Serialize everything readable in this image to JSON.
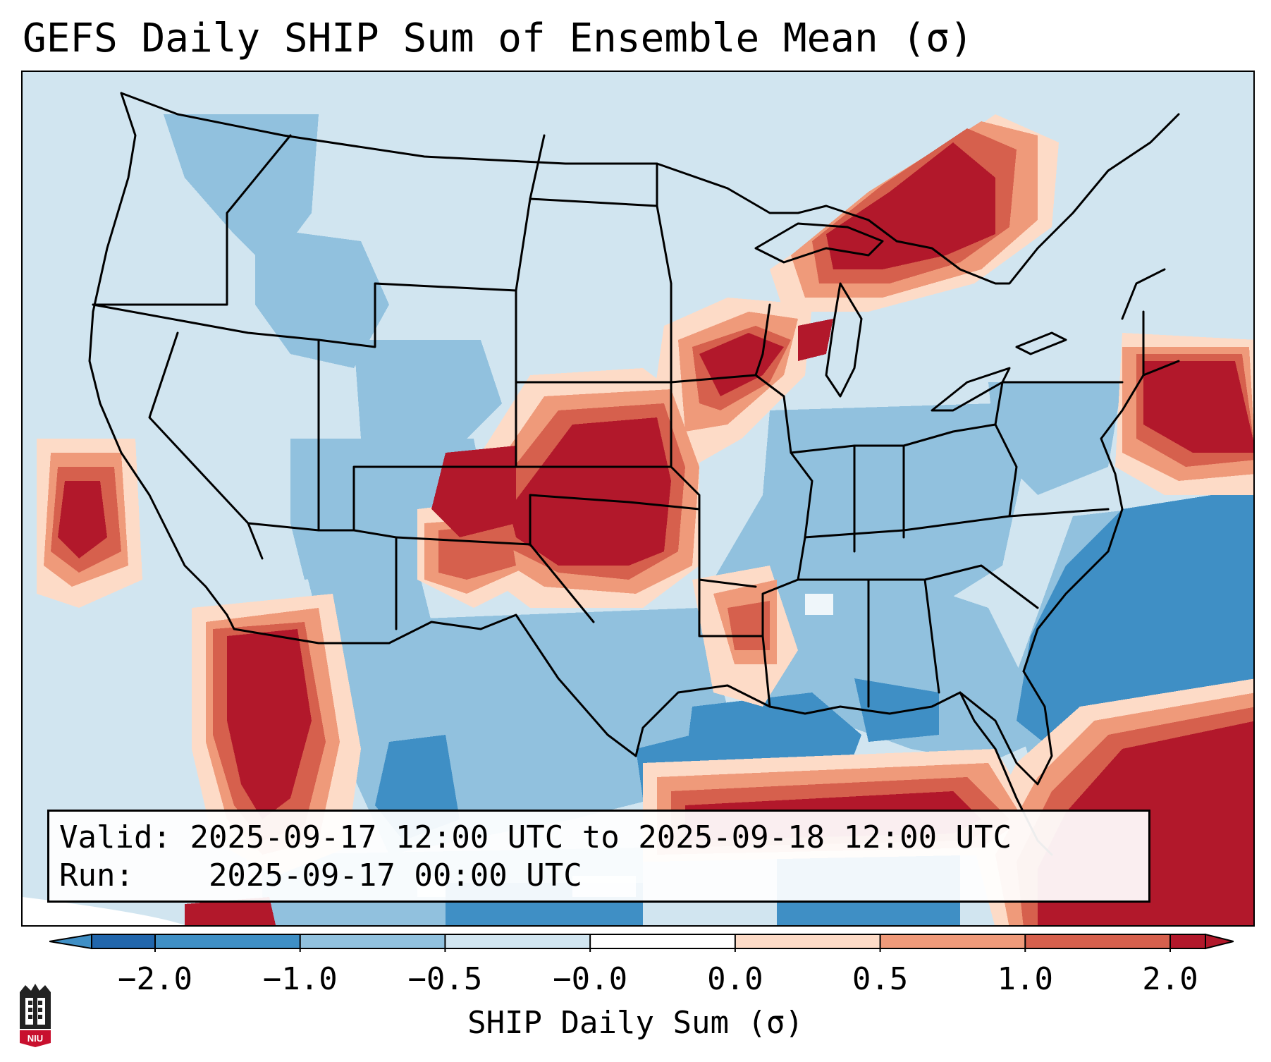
{
  "title": "GEFS Daily SHIP Sum of Ensemble Mean (σ)",
  "info": {
    "valid_label": "Valid:",
    "valid_value": "2025-09-17 12:00 UTC to 2025-09-18 12:00 UTC",
    "run_label": "Run:",
    "run_value": "2025-09-17 00:00 UTC"
  },
  "colorbar": {
    "label": "SHIP Daily Sum (σ)",
    "ticks": [
      "−2.0",
      "−1.0",
      "−0.5",
      "−0.0",
      "0.0",
      "0.5",
      "1.0",
      "2.0"
    ],
    "colors": [
      "#3f8fc5",
      "#91c1de",
      "#d1e5f0",
      "#ffffff",
      "#fddbc7",
      "#ef9a7a",
      "#d6604d",
      "#b2182b"
    ],
    "extend": "both"
  },
  "map": {
    "region": "Contiguous United States",
    "ocean_color": "#d1e5f0",
    "outside_domain_color": "#ffffff",
    "border_color": "#000000"
  },
  "logo": {
    "text": "NIU"
  }
}
